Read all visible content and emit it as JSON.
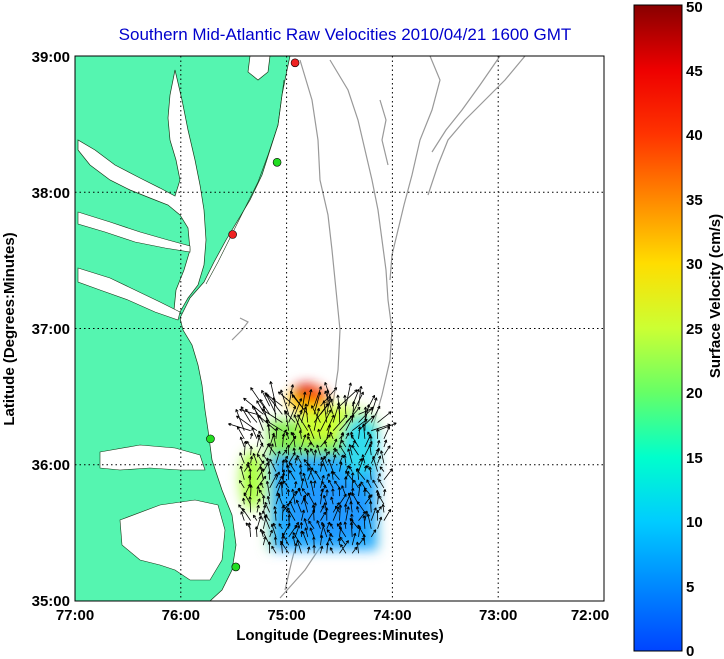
{
  "title": "Southern Mid-Atlantic Raw Velocities 2010/04/21 1600 GMT",
  "xlabel": "Longitude (Degrees:Minutes)",
  "ylabel": "Latitude (Degrees:Minutes)",
  "colorbar_label": "Surface Velocity (cm/s)",
  "x_ticks": [
    "77:00",
    "76:00",
    "75:00",
    "74:00",
    "73:00",
    "72:00"
  ],
  "y_ticks": [
    "35:00",
    "36:00",
    "37:00",
    "38:00",
    "39:00"
  ],
  "colorbar_ticks": [
    "0",
    "5",
    "10",
    "15",
    "20",
    "25",
    "30",
    "35",
    "40",
    "45",
    "50"
  ],
  "colors": {
    "land": "#55f5b0",
    "title": "#0000cc",
    "bathymetry": "#999999",
    "station_green": "#22dd22",
    "station_red": "#ee2222"
  },
  "chart_data": {
    "type": "map-vector-field",
    "lon_range": [
      -77,
      -72
    ],
    "lat_range": [
      35,
      39
    ],
    "velocity_range_cm_s": [
      0,
      50
    ],
    "grid": true,
    "stations": [
      {
        "lon": -74.92,
        "lat": 38.95,
        "status": "red"
      },
      {
        "lon": -75.09,
        "lat": 38.22,
        "status": "green"
      },
      {
        "lon": -75.51,
        "lat": 37.69,
        "status": "red"
      },
      {
        "lon": -75.72,
        "lat": 36.19,
        "status": "green"
      },
      {
        "lon": -75.48,
        "lat": 35.25,
        "status": "green"
      }
    ],
    "field_patches": [
      {
        "lon": -74.75,
        "lat": 36.35,
        "speed": 45
      },
      {
        "lon": -74.95,
        "lat": 36.3,
        "speed": 35
      },
      {
        "lon": -74.55,
        "lat": 36.3,
        "speed": 30
      },
      {
        "lon": -74.3,
        "lat": 36.1,
        "speed": 14
      },
      {
        "lon": -74.9,
        "lat": 36.05,
        "speed": 18
      },
      {
        "lon": -75.25,
        "lat": 35.9,
        "speed": 20
      },
      {
        "lon": -74.7,
        "lat": 35.95,
        "speed": 16
      },
      {
        "lon": -74.9,
        "lat": 35.7,
        "speed": 8
      },
      {
        "lon": -74.6,
        "lat": 35.65,
        "speed": 7
      },
      {
        "lon": -75.2,
        "lat": 35.55,
        "speed": 6
      },
      {
        "lon": -74.9,
        "lat": 35.5,
        "speed": 5
      },
      {
        "lon": -74.55,
        "lat": 35.5,
        "speed": 6
      }
    ]
  }
}
